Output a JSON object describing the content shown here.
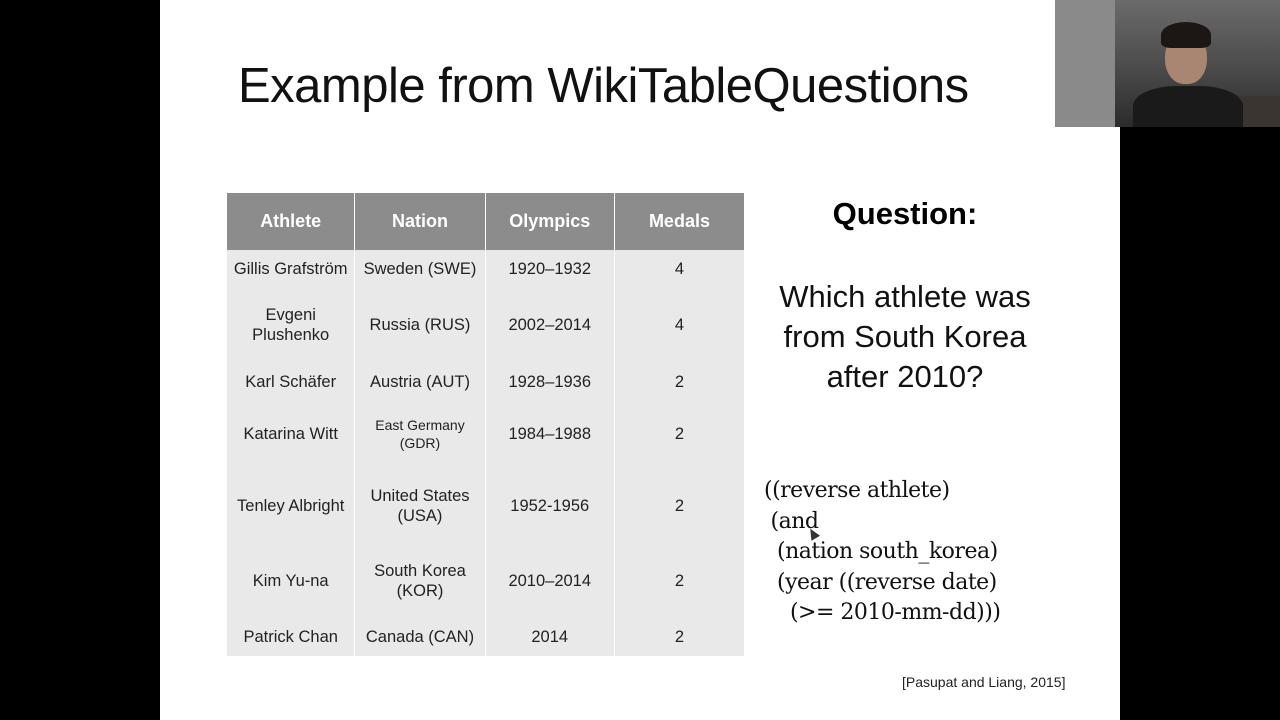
{
  "slide": {
    "title": "Example from WikiTableQuestions",
    "table": {
      "headers": [
        "Athlete",
        "Nation",
        "Olympics",
        "Medals"
      ],
      "rows": [
        [
          "Gillis Grafström",
          "Sweden (SWE)",
          "1920–1932",
          "4"
        ],
        [
          "Evgeni Plushenko",
          "Russia (RUS)",
          "2002–2014",
          "4"
        ],
        [
          "Karl Schäfer",
          "Austria (AUT)",
          "1928–1936",
          "2"
        ],
        [
          "Katarina Witt",
          "East Germany (GDR)",
          "1984–1988",
          "2"
        ],
        [
          "Tenley Albright",
          "United States (USA)",
          "1952-1956",
          "2"
        ],
        [
          "Kim Yu-na",
          "South Korea (KOR)",
          "2010–2014",
          "2"
        ],
        [
          "Patrick Chan",
          "Canada (CAN)",
          "2014",
          "2"
        ]
      ]
    },
    "question_heading": "Question:",
    "question_text": "Which athlete was from South Korea after 2010?",
    "logical_form": [
      "((reverse athlete)",
      " (and",
      "  (nation south_korea)",
      "  (year ((reverse date)",
      "    (>= 2010-mm-dd)))"
    ],
    "citation": "[Pasupat and Liang, 2015]"
  },
  "colors": {
    "header_bg": "#8c8c8c",
    "cell_bg": "#e9e9e9",
    "slide_bg": "#ffffff",
    "frame_bg": "#000000"
  }
}
